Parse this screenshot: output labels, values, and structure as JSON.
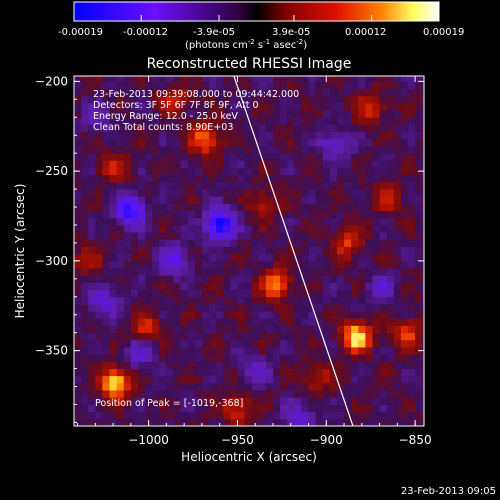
{
  "figure": {
    "colorbar": {
      "tick_labels": [
        "-0.00019",
        "-0.00012",
        "-3.9e-05",
        "3.9e-05",
        "0.00012",
        "0.00019"
      ],
      "tick_values": [
        -0.00019,
        -0.00012,
        -3.9e-05,
        3.9e-05,
        0.00012,
        0.00019
      ],
      "range": [
        -0.00019,
        0.00019
      ],
      "unit_label": "(photons cm",
      "unit_parts": {
        "cm": "(photons cm",
        "cm_exp": "-2",
        "s": " s",
        "s_exp": "-1",
        "asec": " asec",
        "asec_exp": "-2",
        "close": ")"
      },
      "colormap": [
        "#0000ff",
        "#7a0dff",
        "#000000",
        "#8a0000",
        "#e01000",
        "#ff8000",
        "#ffff60",
        "#ffffff"
      ]
    },
    "title": "Reconstructed RHESSI Image",
    "annotations": {
      "time_range": "23-Feb-2013 09:39:08.000 to 09:44:42.000",
      "detectors": "Detectors: 3F 5F 6F 7F 8F 9F, Att 0",
      "energy": "Energy Range: 12.0 - 25.0 keV",
      "clean": "Clean     Total counts: 8.90E+03",
      "peak": "Position of Peak = [-1019,-368]"
    },
    "footer_timestamp": "23-Feb-2013 09:05"
  },
  "chart_data": {
    "type": "heatmap",
    "title": "Reconstructed RHESSI Image",
    "xlabel": "Heliocentric X (arcsec)",
    "ylabel": "Heliocentric Y (arcsec)",
    "xlim": [
      -1042,
      -845
    ],
    "ylim": [
      -392,
      -197
    ],
    "x_ticks": [
      -1000,
      -950,
      -900,
      -850
    ],
    "x_tick_labels": [
      "−1000",
      "−950",
      "−900",
      "−850"
    ],
    "y_ticks": [
      -350,
      -300,
      -250,
      -200
    ],
    "y_tick_labels": [
      "−350",
      "−300",
      "−250",
      "−200"
    ],
    "grid": false,
    "limb_line": [
      [
        -952,
        -197
      ],
      [
        -885,
        -392
      ]
    ],
    "peak": [
      -1019,
      -368
    ],
    "bright_sources": [
      {
        "x": -1019,
        "y": -368,
        "level": 1.0
      },
      {
        "x": -883,
        "y": -342,
        "level": 0.95
      },
      {
        "x": -968,
        "y": -232,
        "level": 0.7
      },
      {
        "x": -928,
        "y": -313,
        "level": 0.75
      },
      {
        "x": -855,
        "y": -340,
        "level": 0.55
      },
      {
        "x": -888,
        "y": -290,
        "level": 0.5
      },
      {
        "x": -950,
        "y": -382,
        "level": 0.5
      },
      {
        "x": -1002,
        "y": -337,
        "level": 0.45
      },
      {
        "x": -875,
        "y": -215,
        "level": 0.45
      },
      {
        "x": -1020,
        "y": -248,
        "level": 0.4
      },
      {
        "x": -985,
        "y": -210,
        "level": 0.4
      },
      {
        "x": -905,
        "y": -365,
        "level": 0.4
      },
      {
        "x": -935,
        "y": -268,
        "level": 0.35
      },
      {
        "x": -865,
        "y": -265,
        "level": 0.35
      },
      {
        "x": -1035,
        "y": -300,
        "level": 0.3
      }
    ],
    "dark_sources": [
      {
        "x": -960,
        "y": -280,
        "level": -1.0
      },
      {
        "x": -1010,
        "y": -272,
        "level": -0.8
      },
      {
        "x": -985,
        "y": -300,
        "level": -0.55
      },
      {
        "x": -915,
        "y": -388,
        "level": -0.5
      },
      {
        "x": -895,
        "y": -235,
        "level": -0.45
      },
      {
        "x": -1025,
        "y": -322,
        "level": -0.5
      },
      {
        "x": -1005,
        "y": -352,
        "level": -0.4
      },
      {
        "x": -940,
        "y": -360,
        "level": -0.35
      },
      {
        "x": -870,
        "y": -315,
        "level": -0.35
      },
      {
        "x": -1030,
        "y": -220,
        "level": -0.3
      }
    ]
  }
}
